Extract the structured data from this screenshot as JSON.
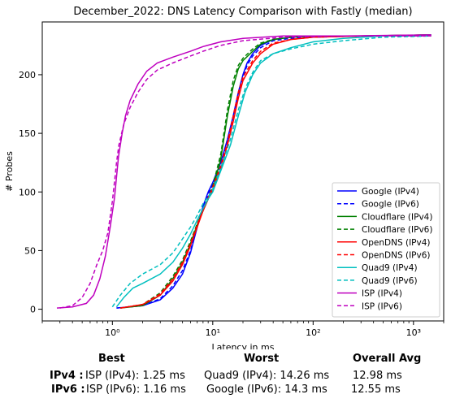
{
  "chart_data": {
    "type": "line",
    "title": "December_2022: DNS Latency Comparison with Fastly (median)",
    "xlabel": "Latency in ms",
    "ylabel": "# Probes",
    "xscale": "log",
    "xlim": [
      0.2,
      2000
    ],
    "ylim": [
      -10,
      245
    ],
    "xticks": [
      1,
      10,
      100,
      1000
    ],
    "xtick_labels": [
      "10⁰",
      "10¹",
      "10²",
      "10³"
    ],
    "yticks": [
      0,
      50,
      100,
      150,
      200
    ],
    "grid": false,
    "legend_position": "lower-right",
    "series": [
      {
        "name": "Google (IPv4)",
        "color": "#0000ff",
        "dash": "solid",
        "points": [
          [
            1.1,
            1
          ],
          [
            2,
            3
          ],
          [
            3,
            8
          ],
          [
            4,
            18
          ],
          [
            5,
            30
          ],
          [
            6,
            48
          ],
          [
            7,
            70
          ],
          [
            8,
            88
          ],
          [
            9,
            100
          ],
          [
            10,
            108
          ],
          [
            12,
            125
          ],
          [
            14,
            145
          ],
          [
            16,
            165
          ],
          [
            18,
            185
          ],
          [
            20,
            200
          ],
          [
            22,
            210
          ],
          [
            25,
            218
          ],
          [
            30,
            225
          ],
          [
            40,
            230
          ],
          [
            60,
            232
          ],
          [
            100,
            233
          ],
          [
            300,
            233
          ],
          [
            1500,
            234
          ]
        ]
      },
      {
        "name": "Google (IPv6)",
        "color": "#0000ff",
        "dash": "dashed",
        "points": [
          [
            1.1,
            1
          ],
          [
            2,
            3
          ],
          [
            3,
            9
          ],
          [
            4,
            20
          ],
          [
            5,
            33
          ],
          [
            6,
            50
          ],
          [
            7,
            70
          ],
          [
            8,
            86
          ],
          [
            9,
            98
          ],
          [
            10,
            106
          ],
          [
            12,
            122
          ],
          [
            14,
            142
          ],
          [
            16,
            162
          ],
          [
            18,
            182
          ],
          [
            20,
            198
          ],
          [
            22,
            208
          ],
          [
            25,
            216
          ],
          [
            30,
            223
          ],
          [
            40,
            229
          ],
          [
            60,
            231
          ],
          [
            100,
            232
          ],
          [
            300,
            233
          ],
          [
            1500,
            233
          ]
        ]
      },
      {
        "name": "Cloudflare (IPv4)",
        "color": "#008000",
        "dash": "solid",
        "points": [
          [
            1.2,
            1
          ],
          [
            2,
            3
          ],
          [
            3,
            12
          ],
          [
            4,
            26
          ],
          [
            5,
            40
          ],
          [
            6,
            56
          ],
          [
            7,
            72
          ],
          [
            8,
            84
          ],
          [
            9,
            94
          ],
          [
            10,
            102
          ],
          [
            12,
            128
          ],
          [
            14,
            165
          ],
          [
            16,
            190
          ],
          [
            18,
            205
          ],
          [
            20,
            212
          ],
          [
            25,
            220
          ],
          [
            30,
            226
          ],
          [
            40,
            230
          ],
          [
            60,
            232
          ],
          [
            100,
            233
          ],
          [
            300,
            233
          ],
          [
            1500,
            234
          ]
        ]
      },
      {
        "name": "Cloudflare (IPv6)",
        "color": "#008000",
        "dash": "dashed",
        "points": [
          [
            1.2,
            1
          ],
          [
            2,
            4
          ],
          [
            3,
            14
          ],
          [
            4,
            28
          ],
          [
            5,
            42
          ],
          [
            6,
            58
          ],
          [
            7,
            73
          ],
          [
            8,
            85
          ],
          [
            9,
            95
          ],
          [
            10,
            105
          ],
          [
            12,
            132
          ],
          [
            14,
            170
          ],
          [
            16,
            195
          ],
          [
            18,
            208
          ],
          [
            20,
            214
          ],
          [
            25,
            222
          ],
          [
            30,
            227
          ],
          [
            40,
            230
          ],
          [
            60,
            232
          ],
          [
            100,
            233
          ],
          [
            300,
            233
          ],
          [
            1500,
            233
          ]
        ]
      },
      {
        "name": "OpenDNS (IPv4)",
        "color": "#ff0000",
        "dash": "solid",
        "points": [
          [
            1.2,
            1
          ],
          [
            2,
            4
          ],
          [
            3,
            12
          ],
          [
            4,
            24
          ],
          [
            5,
            38
          ],
          [
            6,
            54
          ],
          [
            7,
            70
          ],
          [
            8,
            84
          ],
          [
            9,
            94
          ],
          [
            10,
            102
          ],
          [
            12,
            120
          ],
          [
            14,
            140
          ],
          [
            16,
            160
          ],
          [
            18,
            180
          ],
          [
            20,
            195
          ],
          [
            25,
            210
          ],
          [
            30,
            218
          ],
          [
            40,
            226
          ],
          [
            60,
            230
          ],
          [
            100,
            232
          ],
          [
            300,
            233
          ],
          [
            1500,
            234
          ]
        ]
      },
      {
        "name": "OpenDNS (IPv6)",
        "color": "#ff0000",
        "dash": "dashed",
        "points": [
          [
            1.2,
            1
          ],
          [
            2,
            4
          ],
          [
            3,
            13
          ],
          [
            4,
            26
          ],
          [
            5,
            40
          ],
          [
            6,
            56
          ],
          [
            7,
            72
          ],
          [
            8,
            85
          ],
          [
            9,
            95
          ],
          [
            10,
            104
          ],
          [
            12,
            122
          ],
          [
            14,
            142
          ],
          [
            16,
            165
          ],
          [
            18,
            185
          ],
          [
            20,
            198
          ],
          [
            25,
            212
          ],
          [
            30,
            220
          ],
          [
            40,
            227
          ],
          [
            60,
            230
          ],
          [
            100,
            232
          ],
          [
            300,
            233
          ],
          [
            1500,
            233
          ]
        ]
      },
      {
        "name": "Quad9 (IPv4)",
        "color": "#00bfbf",
        "dash": "solid",
        "points": [
          [
            1.1,
            2
          ],
          [
            1.3,
            10
          ],
          [
            1.6,
            18
          ],
          [
            2,
            22
          ],
          [
            3,
            30
          ],
          [
            4,
            40
          ],
          [
            5,
            52
          ],
          [
            6,
            64
          ],
          [
            7,
            76
          ],
          [
            8,
            86
          ],
          [
            9,
            94
          ],
          [
            10,
            100
          ],
          [
            12,
            118
          ],
          [
            15,
            140
          ],
          [
            18,
            165
          ],
          [
            21,
            185
          ],
          [
            25,
            200
          ],
          [
            30,
            210
          ],
          [
            40,
            218
          ],
          [
            60,
            223
          ],
          [
            100,
            228
          ],
          [
            200,
            231
          ],
          [
            500,
            233
          ],
          [
            1500,
            234
          ]
        ]
      },
      {
        "name": "Quad9 (IPv6)",
        "color": "#00bfbf",
        "dash": "dashed",
        "points": [
          [
            1,
            2
          ],
          [
            1.2,
            12
          ],
          [
            1.5,
            22
          ],
          [
            2,
            30
          ],
          [
            3,
            38
          ],
          [
            4,
            48
          ],
          [
            5,
            60
          ],
          [
            6,
            70
          ],
          [
            7,
            80
          ],
          [
            8,
            90
          ],
          [
            9,
            96
          ],
          [
            10,
            102
          ],
          [
            12,
            120
          ],
          [
            15,
            145
          ],
          [
            18,
            170
          ],
          [
            21,
            188
          ],
          [
            25,
            202
          ],
          [
            30,
            212
          ],
          [
            40,
            218
          ],
          [
            60,
            222
          ],
          [
            100,
            226
          ],
          [
            200,
            229
          ],
          [
            500,
            232
          ],
          [
            1500,
            233
          ]
        ]
      },
      {
        "name": "ISP (IPv4)",
        "color": "#bf00bf",
        "dash": "solid",
        "points": [
          [
            0.28,
            1
          ],
          [
            0.4,
            2
          ],
          [
            0.55,
            5
          ],
          [
            0.65,
            12
          ],
          [
            0.75,
            26
          ],
          [
            0.85,
            45
          ],
          [
            0.95,
            70
          ],
          [
            1.05,
            95
          ],
          [
            1.15,
            130
          ],
          [
            1.25,
            150
          ],
          [
            1.35,
            165
          ],
          [
            1.5,
            178
          ],
          [
            1.8,
            192
          ],
          [
            2.2,
            203
          ],
          [
            2.8,
            210
          ],
          [
            4,
            215
          ],
          [
            6,
            220
          ],
          [
            8,
            224
          ],
          [
            12,
            228
          ],
          [
            20,
            231
          ],
          [
            50,
            233
          ],
          [
            200,
            233
          ],
          [
            1500,
            234
          ]
        ]
      },
      {
        "name": "ISP (IPv6)",
        "color": "#bf00bf",
        "dash": "dashed",
        "points": [
          [
            0.3,
            1
          ],
          [
            0.4,
            3
          ],
          [
            0.5,
            10
          ],
          [
            0.6,
            22
          ],
          [
            0.7,
            38
          ],
          [
            0.8,
            50
          ],
          [
            0.9,
            65
          ],
          [
            1,
            92
          ],
          [
            1.1,
            125
          ],
          [
            1.16,
            140
          ],
          [
            1.3,
            158
          ],
          [
            1.5,
            172
          ],
          [
            1.8,
            185
          ],
          [
            2.2,
            196
          ],
          [
            2.8,
            204
          ],
          [
            4,
            210
          ],
          [
            6,
            216
          ],
          [
            8,
            220
          ],
          [
            12,
            225
          ],
          [
            20,
            229
          ],
          [
            50,
            232
          ],
          [
            200,
            233
          ],
          [
            1500,
            233
          ]
        ]
      }
    ]
  },
  "summary": {
    "headers": {
      "best": "Best",
      "worst": "Worst",
      "avg": "Overall Avg"
    },
    "rows": [
      {
        "label": "IPv4 :",
        "best": "ISP (IPv4): 1.25 ms",
        "worst": "Quad9 (IPv4): 14.26 ms",
        "avg": "12.98 ms"
      },
      {
        "label": "IPv6 :",
        "best": "ISP (IPv6): 1.16 ms",
        "worst": "Google (IPv6): 14.3 ms",
        "avg": "12.55 ms"
      }
    ]
  }
}
